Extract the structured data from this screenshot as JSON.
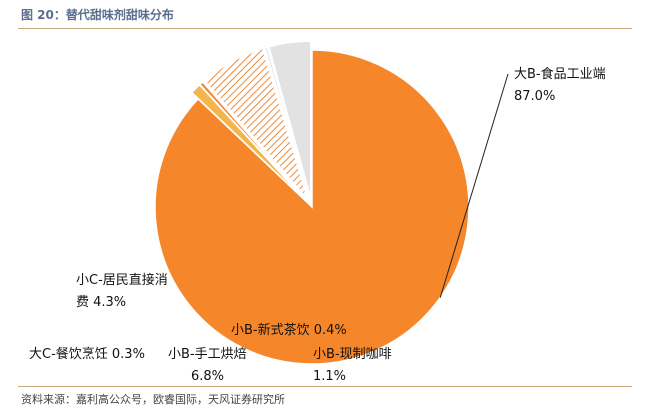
{
  "figure": {
    "title": "图 20：替代甜味剂甜味分布",
    "source": "资料来源：嘉利高公众号，欧睿国际，天风证券研究所"
  },
  "chart_data": {
    "type": "pie",
    "categories": [
      "大B-食品工业端",
      "小B-现制咖啡",
      "小B-新式茶饮",
      "小B-手工烘焙",
      "大C-餐饮烹饪",
      "小C-居民直接消费"
    ],
    "values": [
      87.0,
      1.1,
      0.4,
      6.8,
      0.3,
      4.3
    ],
    "value_labels": [
      "87.0%",
      "1.1%",
      "0.4%",
      "6.8%",
      "0.3%",
      "4.3%"
    ],
    "label_lines": [
      [
        "大B-食品工业端",
        "87.0%"
      ],
      [
        "小B-现制咖啡",
        "1.1%"
      ],
      [
        "小B-新式茶饮 0.4%"
      ],
      [
        "小B-手工烘焙",
        "6.8%"
      ],
      [
        "大C-餐饮烹饪 0.3%"
      ],
      [
        "小C-居民直接消",
        "费 4.3%"
      ]
    ],
    "colors": [
      "#f5862a",
      "#f4b64a",
      "#f08a3a",
      "#f4a26a",
      "#e8e8e8",
      "#e2e2e2"
    ],
    "fills": [
      "solid",
      "solid",
      "solid",
      "hatched",
      "solid",
      "solid"
    ],
    "exploded": [
      false,
      true,
      true,
      true,
      true,
      true
    ],
    "legend": "none"
  }
}
